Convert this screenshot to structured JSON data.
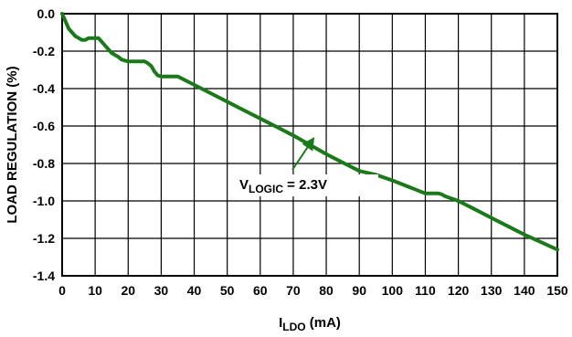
{
  "chart_data": {
    "type": "line",
    "xlabel": {
      "main": "I",
      "sub": "LDO",
      "unit": " (mA)"
    },
    "ylabel": "LOAD REGULATION (%)",
    "xlim": [
      0,
      150
    ],
    "ylim": [
      -1.4,
      0.0
    ],
    "grid": true,
    "x_ticks": [
      0,
      10,
      20,
      30,
      40,
      50,
      60,
      70,
      80,
      90,
      100,
      110,
      120,
      130,
      140,
      150
    ],
    "x_tick_labels": [
      "0",
      "10",
      "20",
      "30",
      "40",
      "50",
      "60",
      "70",
      "80",
      "90",
      "100",
      "110",
      "120",
      "130",
      "140",
      "150"
    ],
    "y_ticks": [
      0.0,
      -0.2,
      -0.4,
      -0.6,
      -0.8,
      -1.0,
      -1.2,
      -1.4
    ],
    "y_tick_labels": [
      "0.0",
      "-0.2",
      "-0.4",
      "-0.6",
      "-0.8",
      "-1.0",
      "-1.2",
      "-1.4"
    ],
    "series": [
      {
        "name": "VLOGIC = 2.3V",
        "color": "#1a7a1a",
        "x": [
          0,
          1,
          2,
          3,
          4,
          5,
          6,
          7,
          8,
          9,
          10,
          11,
          12,
          13,
          14,
          15,
          16,
          17,
          18,
          19,
          20,
          21,
          22,
          23,
          24,
          25,
          26,
          27,
          28,
          29,
          30,
          31,
          32,
          33,
          34,
          35,
          40,
          45,
          50,
          55,
          60,
          65,
          70,
          75,
          80,
          85,
          90,
          95,
          100,
          105,
          110,
          111,
          112,
          113,
          114,
          115,
          116,
          120,
          125,
          130,
          135,
          140,
          145,
          150
        ],
        "y": [
          0.0,
          -0.04,
          -0.08,
          -0.1,
          -0.12,
          -0.13,
          -0.14,
          -0.14,
          -0.13,
          -0.13,
          -0.13,
          -0.13,
          -0.15,
          -0.17,
          -0.19,
          -0.21,
          -0.22,
          -0.23,
          -0.245,
          -0.25,
          -0.255,
          -0.255,
          -0.255,
          -0.255,
          -0.255,
          -0.255,
          -0.265,
          -0.28,
          -0.31,
          -0.33,
          -0.335,
          -0.335,
          -0.335,
          -0.335,
          -0.335,
          -0.335,
          -0.38,
          -0.425,
          -0.47,
          -0.515,
          -0.56,
          -0.605,
          -0.65,
          -0.7,
          -0.75,
          -0.795,
          -0.84,
          -0.86,
          -0.89,
          -0.925,
          -0.96,
          -0.96,
          -0.96,
          -0.96,
          -0.96,
          -0.965,
          -0.975,
          -1.0,
          -1.045,
          -1.09,
          -1.135,
          -1.18,
          -1.22,
          -1.26
        ]
      }
    ],
    "annotation": {
      "main": "V",
      "sub": "LOGIC",
      "rest": " = 2.3V",
      "arrow_tip": [
        76,
        -0.67
      ]
    }
  }
}
